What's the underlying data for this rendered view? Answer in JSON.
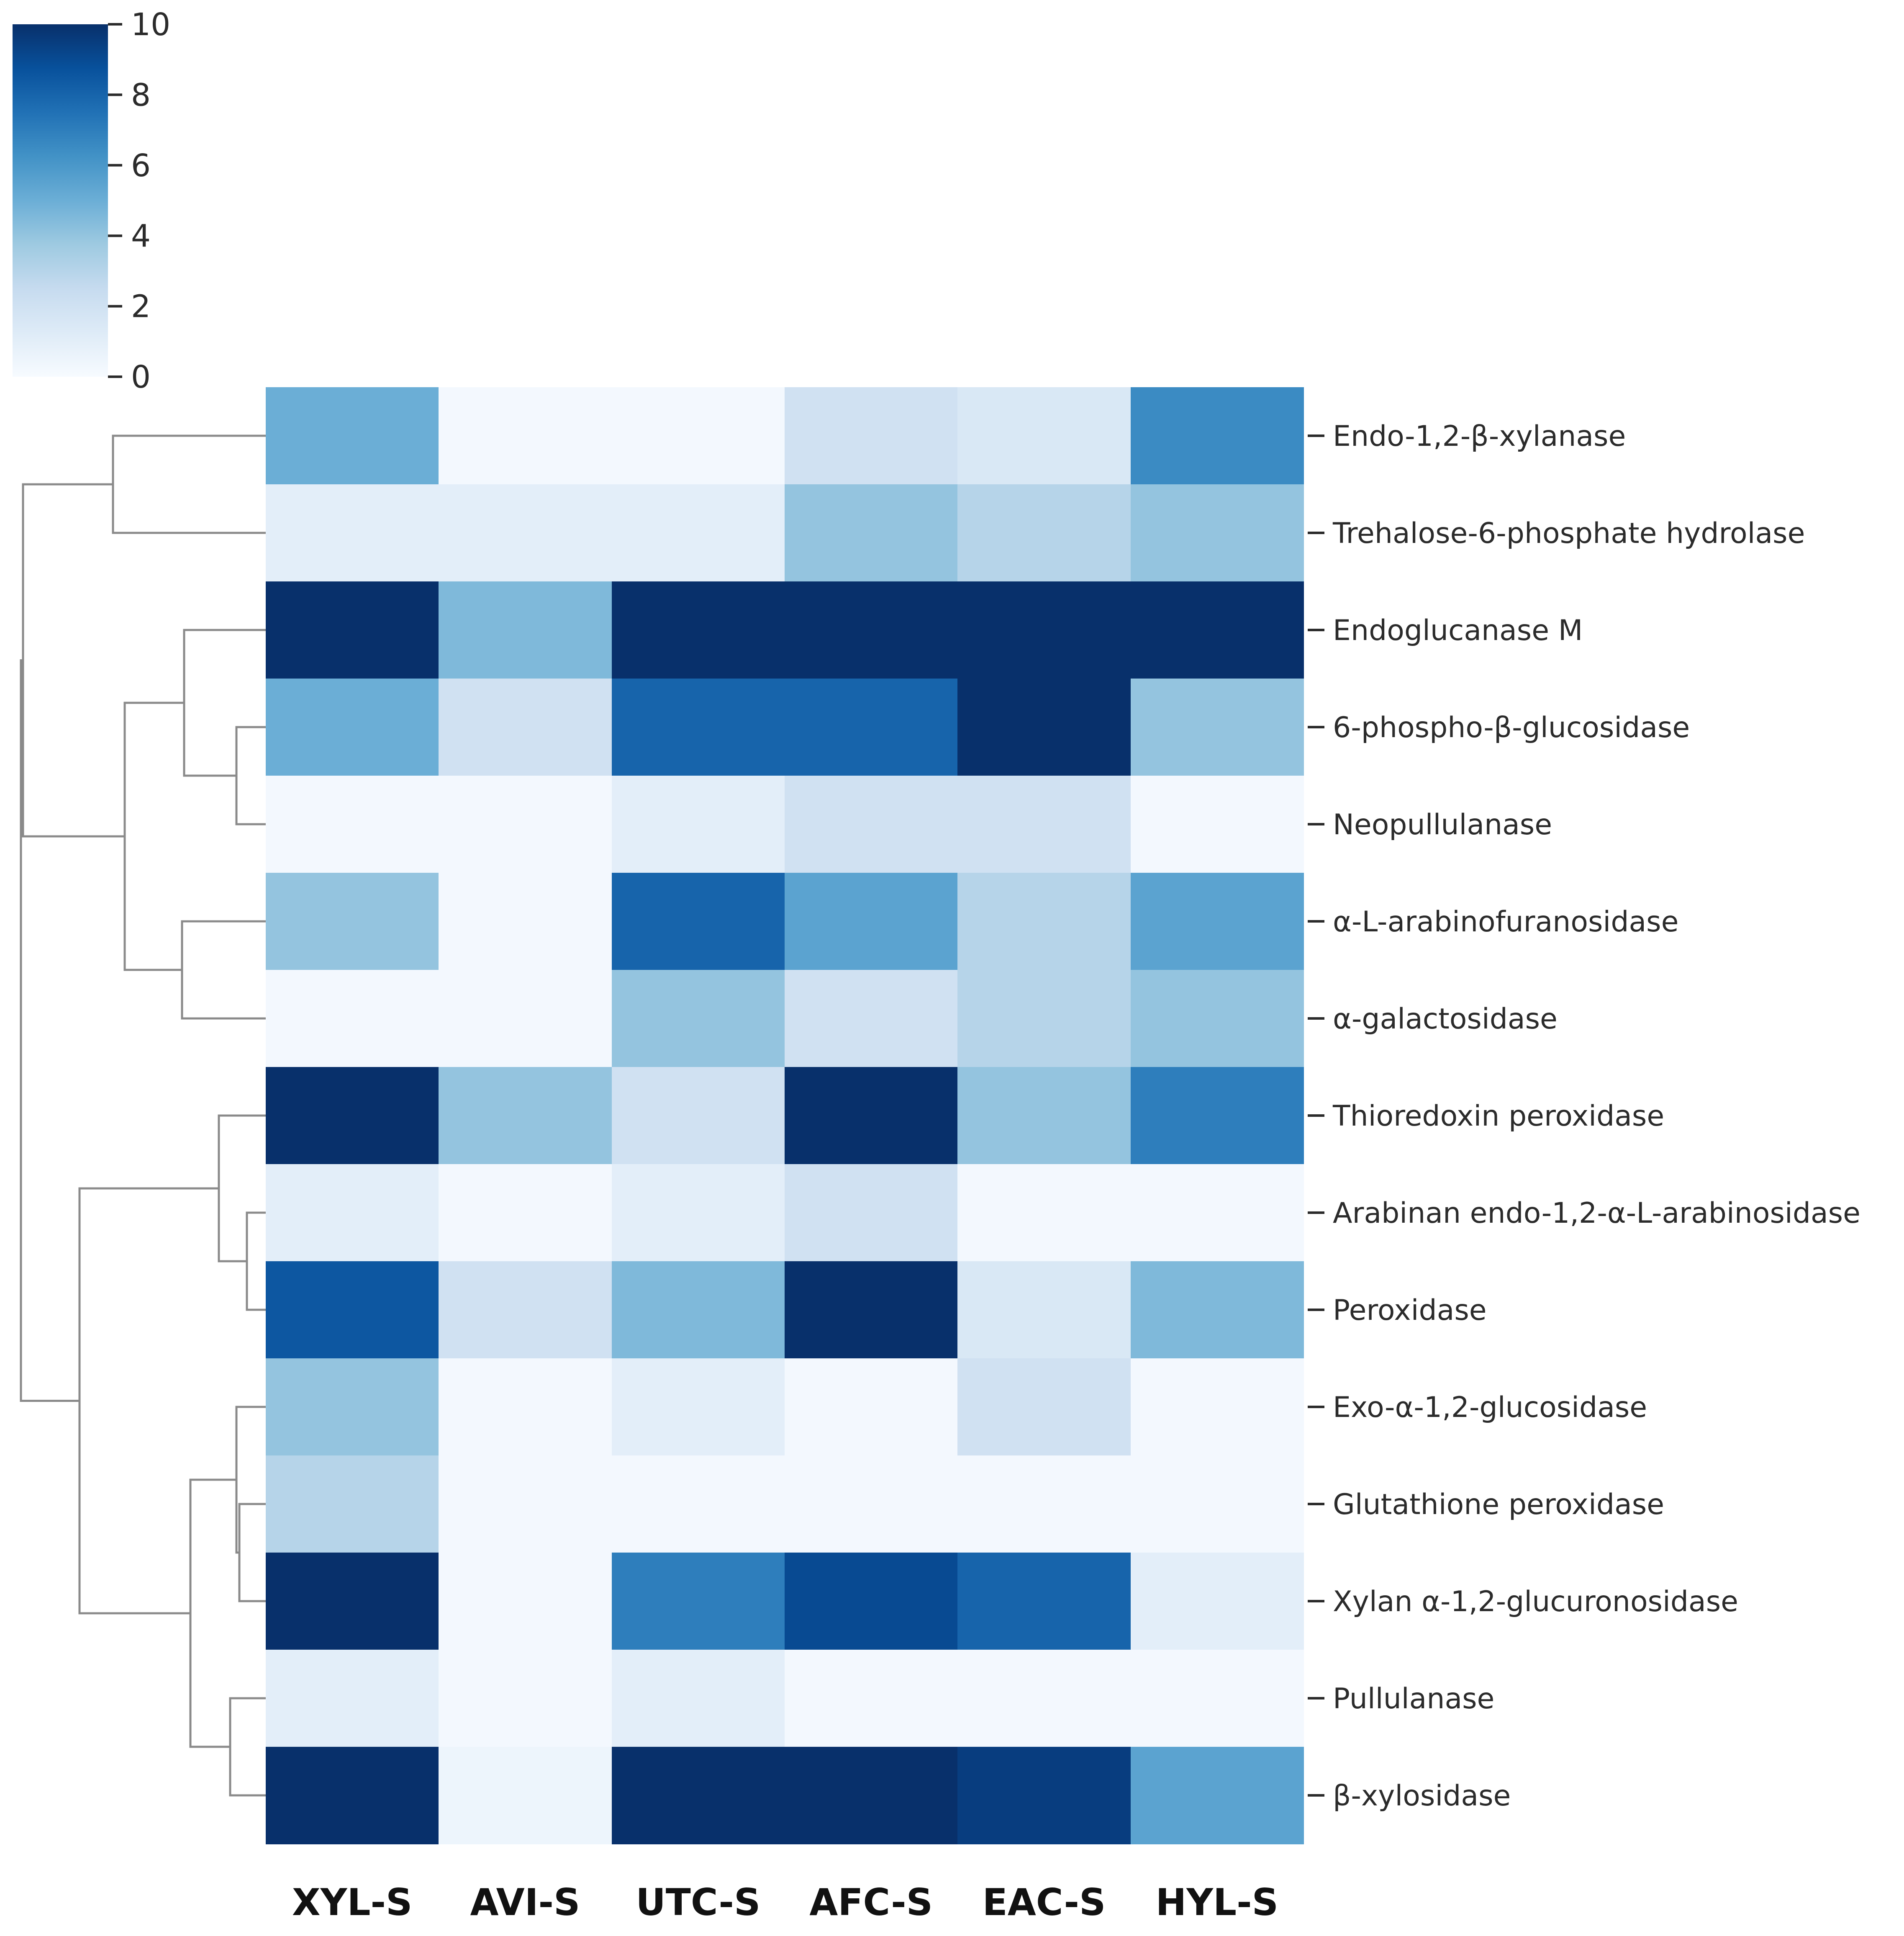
{
  "chart_data": {
    "type": "heatmap",
    "title": "",
    "xlabel": "",
    "ylabel": "",
    "colormap": "Blues",
    "colors": {
      "scale": [
        "#f7fbff",
        "#deebf7",
        "#c6dbef",
        "#9ecae1",
        "#6baed6",
        "#4292c6",
        "#2171b5",
        "#08519c",
        "#08306b"
      ],
      "dendrogram": "#8a8a8a",
      "text": "#2b2b2b",
      "column_label": "#111111"
    },
    "colorbar": {
      "min": 0,
      "max": 10,
      "ticks": [
        0,
        2,
        4,
        6,
        8,
        10
      ],
      "tick_labels": [
        "0",
        "2",
        "4",
        "6",
        "8",
        "10"
      ]
    },
    "columns": [
      "XYL-S",
      "AVI-S",
      "UTC-S",
      "AFC-S",
      "EAC-S",
      "HYL-S"
    ],
    "rows": [
      "Endo-1,2-β-xylanase",
      "Trehalose-6-phosphate hydrolase",
      "Endoglucanase M",
      "6-phospho-β-glucosidase",
      "Neopullulanase",
      "α-L-arabinofuranosidase",
      "α-galactosidase",
      "Thioredoxin peroxidase",
      "Arabinan endo-1,2-α-L-arabinosidase",
      "Peroxidase",
      "Exo-α-1,2-glucosidase",
      "Glutathione peroxidase",
      "Xylan α-1,2-glucuronosidase",
      "Pullulanase",
      "β-xylosidase"
    ],
    "values": [
      [
        5.0,
        0.2,
        0.2,
        2.0,
        1.5,
        6.5
      ],
      [
        1.0,
        1.0,
        1.0,
        4.0,
        3.0,
        4.0
      ],
      [
        10.0,
        4.5,
        10.0,
        10.0,
        10.0,
        10.0
      ],
      [
        5.0,
        2.0,
        8.0,
        8.0,
        10.0,
        4.0
      ],
      [
        0.2,
        0.2,
        1.0,
        2.0,
        2.0,
        0.2
      ],
      [
        4.0,
        0.2,
        8.0,
        5.5,
        3.0,
        5.5
      ],
      [
        0.2,
        0.2,
        4.0,
        2.0,
        3.0,
        4.0
      ],
      [
        10.0,
        4.0,
        2.0,
        10.0,
        4.0,
        7.0
      ],
      [
        1.0,
        0.2,
        1.0,
        2.0,
        0.2,
        0.2
      ],
      [
        8.5,
        2.0,
        4.5,
        10.0,
        1.5,
        4.5
      ],
      [
        4.0,
        0.2,
        1.0,
        0.2,
        2.0,
        0.2
      ],
      [
        3.0,
        0.2,
        0.2,
        0.2,
        0.2,
        0.2
      ],
      [
        10.0,
        0.2,
        7.0,
        9.0,
        8.0,
        1.0
      ],
      [
        1.0,
        0.2,
        1.0,
        0.2,
        0.2,
        0.2
      ],
      [
        10.0,
        0.5,
        10.0,
        10.0,
        9.5,
        5.5
      ]
    ],
    "dendrogram": {
      "orientation": "left",
      "merge_order": [
        "0+1",
        "3+4",
        "5+6",
        "(3+4)+2",
        "((3+4)+2)+(5+6)",
        "8+9",
        "(8+9)+7",
        "11+12",
        "10+(11+12)",
        "13+14",
        "(10+(11+12))+(13+14)",
        "((8+9)+7)+((10+(11+12))+(13+14))",
        "(0+1)+(((3+4)+2)+(5+6))",
        "all"
      ]
    }
  }
}
